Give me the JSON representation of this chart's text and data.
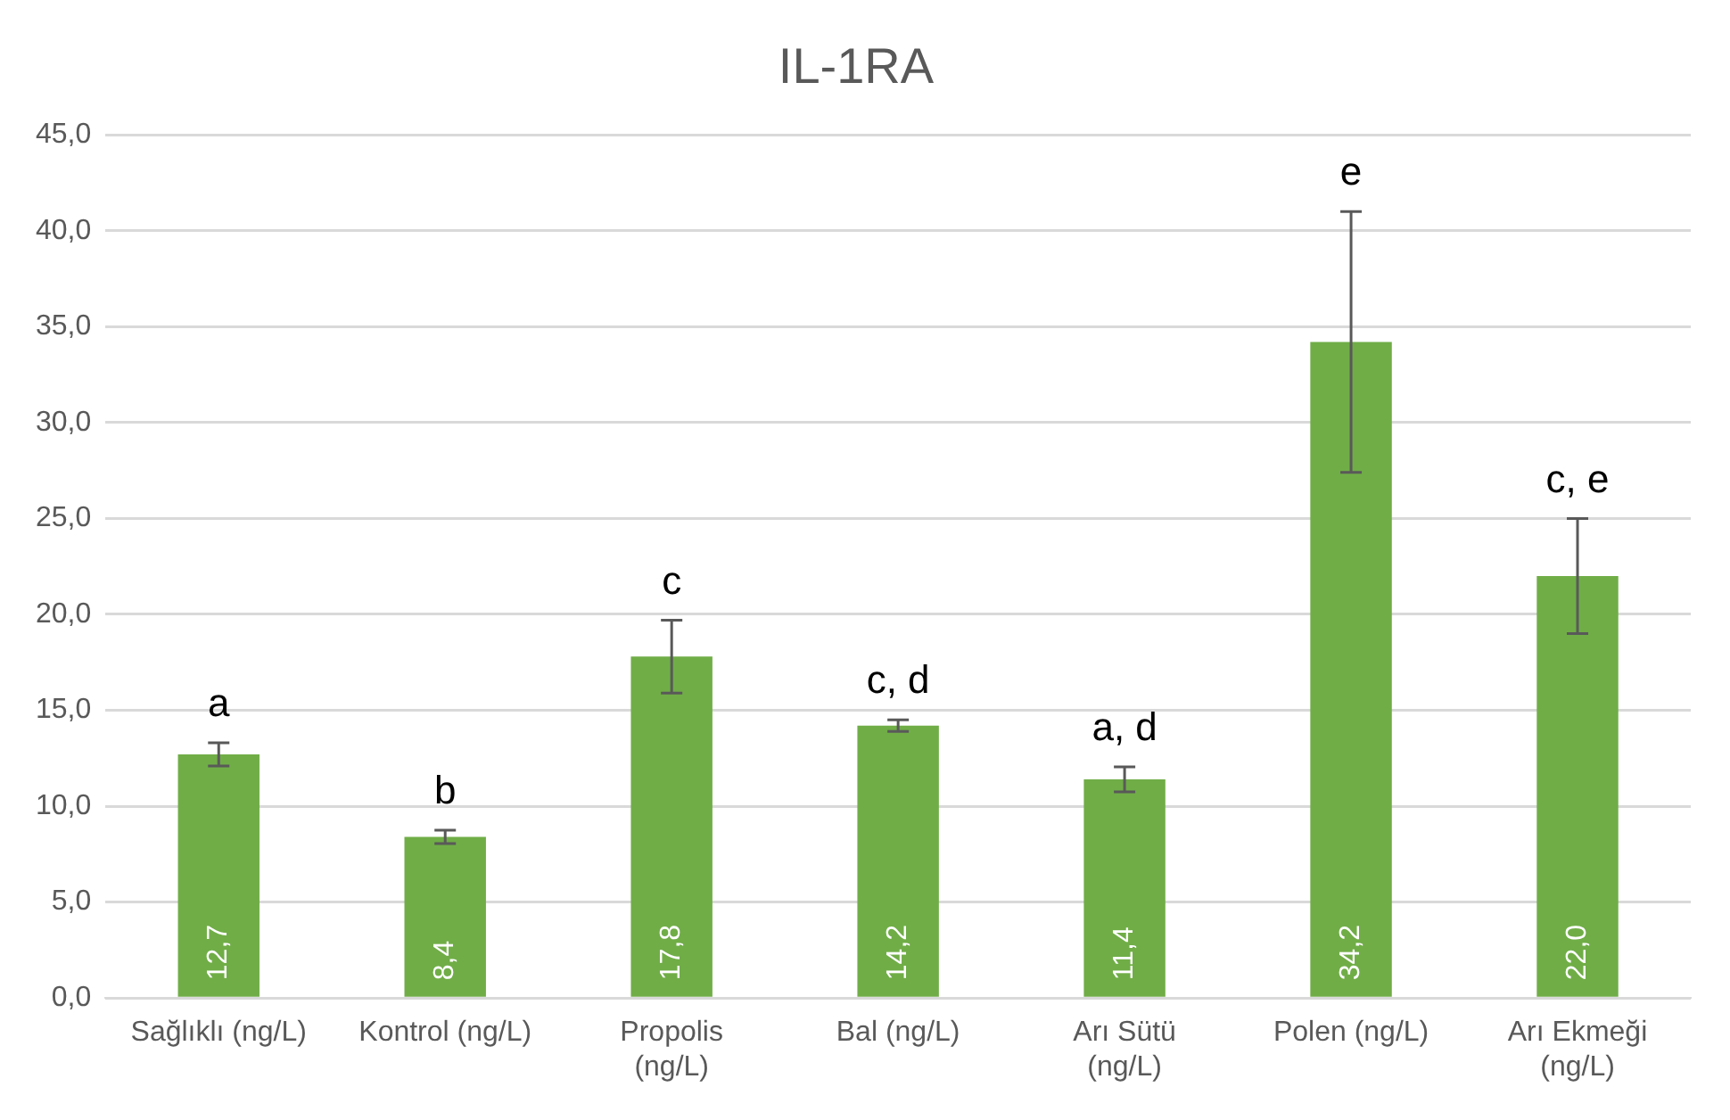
{
  "chart_data": {
    "type": "bar",
    "title": "IL-1RA",
    "categories": [
      "Sağlıklı (ng/L)",
      "Kontrol (ng/L)",
      "Propolis (ng/L)",
      "Bal (ng/L)",
      "Arı Sütü (ng/L)",
      "Polen (ng/L)",
      "Arı Ekmeği (ng/L)"
    ],
    "values": [
      12.7,
      8.4,
      17.8,
      14.2,
      11.4,
      34.2,
      22.0
    ],
    "value_labels": [
      "12,7",
      "8,4",
      "17,8",
      "14,2",
      "11,4",
      "34,2",
      "22,0"
    ],
    "errors": [
      0.6,
      0.35,
      1.9,
      0.3,
      0.65,
      6.8,
      3.0
    ],
    "color": "#70ad47",
    "ylim": [
      0,
      45
    ],
    "yticks": [
      {
        "value": 0,
        "label": "0,0"
      },
      {
        "value": 5,
        "label": "5,0"
      },
      {
        "value": 10,
        "label": "10,0"
      },
      {
        "value": 15,
        "label": "15,0"
      },
      {
        "value": 20,
        "label": "20,0"
      },
      {
        "value": 25,
        "label": "25,0"
      },
      {
        "value": 30,
        "label": "30,0"
      },
      {
        "value": 35,
        "label": "35,0"
      },
      {
        "value": 40,
        "label": "40,0"
      },
      {
        "value": 45,
        "label": "45,0"
      }
    ],
    "grid": "y",
    "legend": false,
    "annotations": [
      {
        "text": "a",
        "x": "Sağlıklı (ng/L)",
        "y": 13.3
      },
      {
        "text": "b",
        "x": "Kontrol (ng/L)",
        "y": 8.75
      },
      {
        "text": "c",
        "x": "Propolis (ng/L)",
        "y": 19.7
      },
      {
        "text": "c, d",
        "x": "Bal (ng/L)",
        "y": 14.5
      },
      {
        "text": "a, d",
        "x": "Arı Sütü (ng/L)",
        "y": 12.05
      },
      {
        "text": "e",
        "x": "Polen (ng/L)",
        "y": 41.0
      },
      {
        "text": "c, e",
        "x": "Arı Ekmeği (ng/L)",
        "y": 25.0
      }
    ]
  }
}
